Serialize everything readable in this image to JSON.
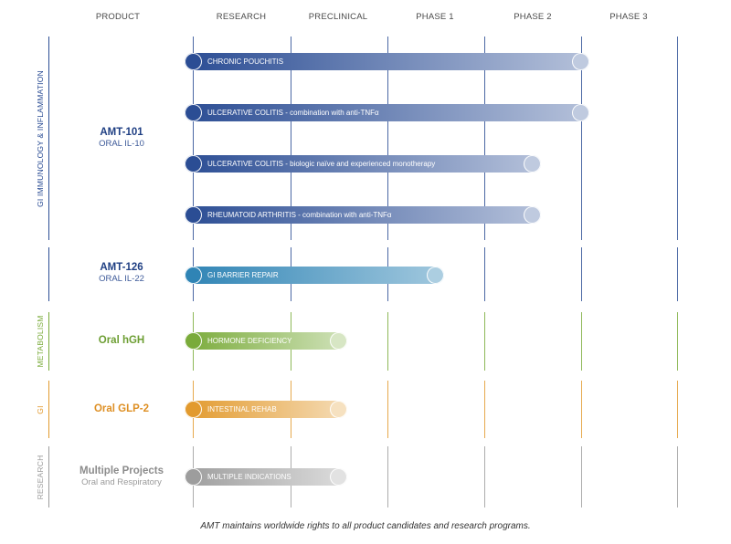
{
  "colors": {
    "gi_immunology": "#2b4d94",
    "metabolism": "#7aab3a",
    "gi": "#e29a2e",
    "research": "#9d9d9d",
    "amt126": "#2f84b5"
  },
  "headers": [
    "PRODUCT",
    "RESEARCH",
    "PRECLINICAL",
    "PHASE 1",
    "PHASE 2",
    "PHASE 3"
  ],
  "groups": [
    {
      "label": "GI IMMUNOLOGY & INFLAMMATION",
      "color": "#2b4d94",
      "products": [
        {
          "name": "AMT-101",
          "subtitle": "ORAL IL-10",
          "color": "#1f3f83",
          "sub_color": "#3d5a99",
          "programs": [
            {
              "label": "CHRONIC POUCHITIS",
              "end_stage": "PHASE 2",
              "progress": 1.0
            },
            {
              "label": "ULCERATIVE COLITIS - combination with anti-TNFα",
              "end_stage": "PHASE 2",
              "progress": 1.0
            },
            {
              "label": "ULCERATIVE COLITIS - biologic naïve and experienced monotherapy",
              "end_stage": "PHASE 2",
              "progress": 0.5
            },
            {
              "label": "RHEUMATOID ARTHRITIS - combination with anti-TNFα",
              "end_stage": "PHASE 2",
              "progress": 0.5
            }
          ]
        },
        {
          "name": "AMT-126",
          "subtitle": "ORAL IL-22",
          "color": "#1f3f83",
          "sub_color": "#3d5a99",
          "programs": [
            {
              "label": "GI BARRIER REPAIR",
              "end_stage": "PHASE 1",
              "progress": 0.5
            }
          ]
        }
      ]
    },
    {
      "label": "METABOLISM",
      "color": "#7aab3a",
      "products": [
        {
          "name": "Oral hGH",
          "subtitle": "",
          "color": "#6d9e33",
          "sub_color": "#6d9e33",
          "programs": [
            {
              "label": "HORMONE DEFICIENCY",
              "end_stage": "PRECLINICAL",
              "progress": 0.5
            }
          ]
        }
      ]
    },
    {
      "label": "GI",
      "color": "#e29a2e",
      "products": [
        {
          "name": "Oral GLP-2",
          "subtitle": "",
          "color": "#de8f23",
          "sub_color": "#de8f23",
          "programs": [
            {
              "label": "INTESTINAL REHAB",
              "end_stage": "PRECLINICAL",
              "progress": 0.5
            }
          ]
        }
      ]
    },
    {
      "label": "RESEARCH",
      "color": "#9d9d9d",
      "products": [
        {
          "name": "Multiple Projects",
          "subtitle": "Oral and Respiratory",
          "color": "#8c8c8c",
          "sub_color": "#9a9a9a",
          "programs": [
            {
              "label": "MULTIPLE INDICATIONS",
              "end_stage": "PRECLINICAL",
              "progress": 0.5
            }
          ]
        }
      ]
    }
  ],
  "footer": "AMT maintains worldwide rights to all product candidates and research programs."
}
